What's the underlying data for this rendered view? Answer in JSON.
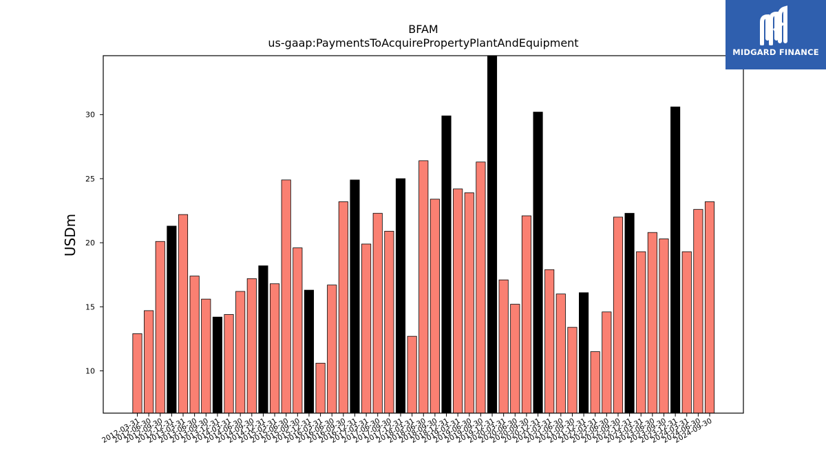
{
  "chart_data": {
    "type": "bar",
    "title": "BFAM",
    "subtitle": "us-gaap:PaymentsToAcquirePropertyPlantAndEquipment",
    "xlabel": "",
    "ylabel": "USDm",
    "ylim": [
      6.7,
      34.6
    ],
    "yticks": [
      10,
      15,
      20,
      25,
      30
    ],
    "grid": false,
    "categories": [
      "2012-03-31",
      "2012-06-30",
      "2012-09-30",
      "2012-12-31",
      "2013-03-31",
      "2013-06-30",
      "2013-09-30",
      "2013-12-31",
      "2014-03-31",
      "2014-06-30",
      "2014-09-30",
      "2014-12-31",
      "2015-03-31",
      "2015-06-30",
      "2015-09-30",
      "2015-12-31",
      "2016-03-31",
      "2016-06-30",
      "2016-09-30",
      "2016-12-31",
      "2017-03-31",
      "2017-06-30",
      "2017-09-30",
      "2017-12-31",
      "2018-03-31",
      "2018-06-30",
      "2018-09-30",
      "2018-12-31",
      "2019-03-31",
      "2019-06-30",
      "2019-09-30",
      "2019-12-31",
      "2020-03-31",
      "2020-06-30",
      "2020-09-30",
      "2020-12-31",
      "2021-03-31",
      "2021-06-30",
      "2021-09-30",
      "2021-12-31",
      "2022-03-31",
      "2022-06-30",
      "2022-09-30",
      "2022-12-31",
      "2023-03-31",
      "2023-06-30",
      "2023-09-30",
      "2023-12-31",
      "2024-03-31",
      "2024-06-30",
      "2024-09-30"
    ],
    "values": [
      12.9,
      14.7,
      20.1,
      21.3,
      22.2,
      17.4,
      15.6,
      14.2,
      14.4,
      16.2,
      17.2,
      18.2,
      16.8,
      24.9,
      19.6,
      16.3,
      10.6,
      16.7,
      23.2,
      24.9,
      19.9,
      22.3,
      20.9,
      25.0,
      12.7,
      26.4,
      23.4,
      29.9,
      24.2,
      23.9,
      26.3,
      34.6,
      17.1,
      15.2,
      22.1,
      30.2,
      17.9,
      16.0,
      13.4,
      16.1,
      11.5,
      14.6,
      22.0,
      22.3,
      19.3,
      20.8,
      20.3,
      30.6,
      19.3,
      22.6,
      23.2
    ],
    "highlight_indices": [
      3,
      7,
      11,
      15,
      19,
      23,
      27,
      31,
      35,
      39,
      43,
      47
    ],
    "colors": {
      "bar": "#fa8072",
      "highlight": "#000000",
      "edge": "#000000"
    }
  },
  "logo": {
    "text": "MIDGARD FINANCE",
    "background": "#2f5fae"
  }
}
